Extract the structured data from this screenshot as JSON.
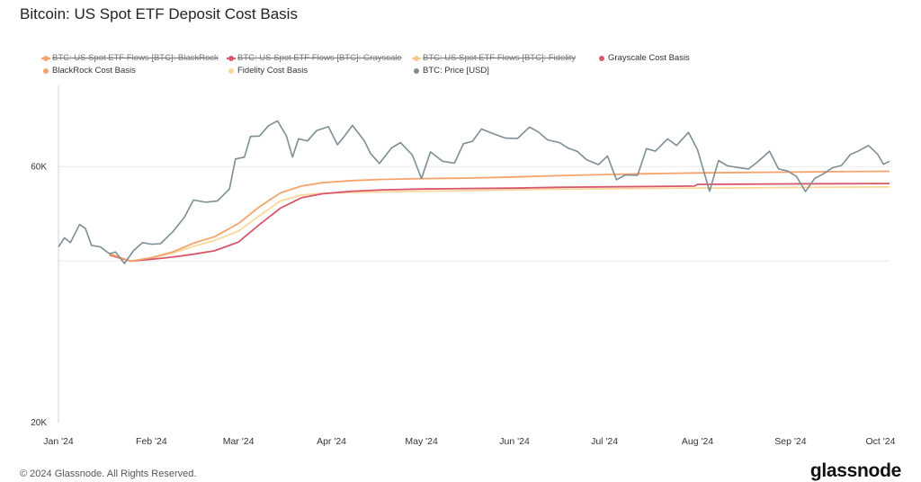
{
  "title": "Bitcoin: US Spot ETF Deposit Cost Basis",
  "footer": "© 2024 Glassnode. All Rights Reserved.",
  "logo": "glassnode",
  "chart_data": {
    "type": "line",
    "title": "Bitcoin: US Spot ETF Deposit Cost Basis",
    "xlabel": "",
    "ylabel": "",
    "y_scale": "log",
    "ylim": [
      20000,
      85000
    ],
    "y_ticks": [
      {
        "value": 20000,
        "label": "20K"
      },
      {
        "value": 60000,
        "label": "60K"
      }
    ],
    "x_ticks": [
      {
        "date": "2024-01-01",
        "label": "Jan '24"
      },
      {
        "date": "2024-02-01",
        "label": "Feb '24"
      },
      {
        "date": "2024-03-01",
        "label": "Mar '24"
      },
      {
        "date": "2024-04-01",
        "label": "Apr '24"
      },
      {
        "date": "2024-05-01",
        "label": "May '24"
      },
      {
        "date": "2024-06-01",
        "label": "Jun '24"
      },
      {
        "date": "2024-07-01",
        "label": "Jul '24"
      },
      {
        "date": "2024-08-01",
        "label": "Aug '24"
      },
      {
        "date": "2024-09-01",
        "label": "Sep '24"
      },
      {
        "date": "2024-10-01",
        "label": "Oct '24"
      }
    ],
    "xlim": [
      "2024-01-01",
      "2024-10-04"
    ],
    "grid": "horizontal",
    "legend_position": "top-left",
    "legend": [
      {
        "name": "BTC: US Spot ETF Flows [BTC]: BlackRock",
        "color": "#f4a46a",
        "marker": "line",
        "hidden": true
      },
      {
        "name": "BTC: US Spot ETF Flows [BTC]: Grayscale",
        "color": "#d9566b",
        "marker": "line",
        "hidden": true
      },
      {
        "name": "BTC: US Spot ETF Flows [BTC]: Fidelity",
        "color": "#f7c98a",
        "marker": "line",
        "hidden": true
      },
      {
        "name": "Grayscale Cost Basis",
        "color": "#d9566b",
        "marker": "dot",
        "hidden": false
      },
      {
        "name": "BlackRock Cost Basis",
        "color": "#f4a46a",
        "marker": "dot",
        "hidden": false
      },
      {
        "name": "Fidelity Cost Basis",
        "color": "#fbd79a",
        "marker": "dot",
        "hidden": false
      },
      {
        "name": "BTC: Price [USD]",
        "color": "#7d8e94",
        "marker": "dot",
        "hidden": false
      }
    ],
    "series": [
      {
        "name": "BTC: Price [USD]",
        "color": "#7d8e94",
        "x": [
          "2024-01-01",
          "2024-01-03",
          "2024-01-05",
          "2024-01-08",
          "2024-01-10",
          "2024-01-12",
          "2024-01-15",
          "2024-01-18",
          "2024-01-20",
          "2024-01-23",
          "2024-01-26",
          "2024-01-29",
          "2024-02-01",
          "2024-02-04",
          "2024-02-08",
          "2024-02-12",
          "2024-02-15",
          "2024-02-19",
          "2024-02-23",
          "2024-02-27",
          "2024-02-29",
          "2024-03-03",
          "2024-03-05",
          "2024-03-08",
          "2024-03-11",
          "2024-03-14",
          "2024-03-17",
          "2024-03-19",
          "2024-03-21",
          "2024-03-24",
          "2024-03-27",
          "2024-03-31",
          "2024-04-03",
          "2024-04-05",
          "2024-04-08",
          "2024-04-12",
          "2024-04-14",
          "2024-04-17",
          "2024-04-21",
          "2024-04-24",
          "2024-04-28",
          "2024-05-01",
          "2024-05-04",
          "2024-05-08",
          "2024-05-12",
          "2024-05-15",
          "2024-05-18",
          "2024-05-21",
          "2024-05-25",
          "2024-05-29",
          "2024-06-02",
          "2024-06-06",
          "2024-06-09",
          "2024-06-12",
          "2024-06-16",
          "2024-06-19",
          "2024-06-22",
          "2024-06-25",
          "2024-06-29",
          "2024-07-02",
          "2024-07-05",
          "2024-07-08",
          "2024-07-12",
          "2024-07-15",
          "2024-07-18",
          "2024-07-22",
          "2024-07-25",
          "2024-07-29",
          "2024-08-01",
          "2024-08-05",
          "2024-08-08",
          "2024-08-11",
          "2024-08-14",
          "2024-08-18",
          "2024-08-21",
          "2024-08-25",
          "2024-08-28",
          "2024-08-31",
          "2024-09-03",
          "2024-09-06",
          "2024-09-09",
          "2024-09-12",
          "2024-09-15",
          "2024-09-18",
          "2024-09-21",
          "2024-09-24",
          "2024-09-27",
          "2024-09-30",
          "2024-10-02",
          "2024-10-04"
        ],
        "y": [
          42500,
          44200,
          43300,
          46800,
          46000,
          42800,
          42500,
          41300,
          41600,
          39600,
          41800,
          43300,
          43000,
          43100,
          45300,
          48300,
          52000,
          51500,
          51800,
          54500,
          62000,
          62500,
          68300,
          68400,
          71500,
          73000,
          68400,
          62500,
          67600,
          67000,
          70000,
          71200,
          65900,
          68000,
          71600,
          67000,
          63500,
          60800,
          65000,
          66500,
          63000,
          57000,
          63900,
          61400,
          60900,
          66200,
          66900,
          70500,
          69100,
          67800,
          67700,
          71100,
          69600,
          67300,
          66500,
          64900,
          64000,
          61800,
          60500,
          62800,
          56700,
          57900,
          57800,
          64800,
          64100,
          67600,
          65700,
          69500,
          64500,
          54000,
          61600,
          60200,
          59800,
          59400,
          61200,
          64100,
          59400,
          58900,
          57500,
          53900,
          57000,
          58200,
          59700,
          60300,
          63200,
          64300,
          65700,
          63300,
          60600,
          61400
        ]
      },
      {
        "name": "BlackRock Cost Basis",
        "color": "#f4a46a",
        "x": [
          "2024-01-18",
          "2024-01-25",
          "2024-02-01",
          "2024-02-08",
          "2024-02-15",
          "2024-02-22",
          "2024-03-01",
          "2024-03-08",
          "2024-03-15",
          "2024-03-22",
          "2024-03-29",
          "2024-04-08",
          "2024-04-18",
          "2024-05-01",
          "2024-05-15",
          "2024-06-01",
          "2024-06-15",
          "2024-07-01",
          "2024-07-15",
          "2024-08-01",
          "2024-08-15",
          "2024-09-01",
          "2024-09-15",
          "2024-10-04"
        ],
        "y": [
          41300,
          40000,
          40600,
          41600,
          43200,
          44400,
          47000,
          50500,
          53600,
          55200,
          56000,
          56500,
          56800,
          57000,
          57100,
          57400,
          57700,
          58000,
          58200,
          58400,
          58500,
          58600,
          58700,
          58800
        ]
      },
      {
        "name": "Grayscale Cost Basis",
        "color": "#d9566b",
        "x": [
          "2024-01-18",
          "2024-01-25",
          "2024-02-01",
          "2024-02-08",
          "2024-02-15",
          "2024-02-22",
          "2024-03-01",
          "2024-03-08",
          "2024-03-15",
          "2024-03-22",
          "2024-03-29",
          "2024-04-08",
          "2024-04-18",
          "2024-05-01",
          "2024-05-15",
          "2024-06-01",
          "2024-06-15",
          "2024-07-01",
          "2024-07-15",
          "2024-07-31",
          "2024-08-01",
          "2024-08-15",
          "2024-09-01",
          "2024-09-15",
          "2024-10-04"
        ],
        "y": [
          41100,
          40000,
          40300,
          40700,
          41200,
          41800,
          43400,
          46800,
          50200,
          52500,
          53400,
          54000,
          54300,
          54500,
          54600,
          54700,
          54900,
          55000,
          55100,
          55200,
          55600,
          55650,
          55700,
          55750,
          55800
        ]
      },
      {
        "name": "Fidelity Cost Basis",
        "color": "#fbd79a",
        "x": [
          "2024-01-18",
          "2024-01-25",
          "2024-02-01",
          "2024-02-08",
          "2024-02-15",
          "2024-02-22",
          "2024-03-01",
          "2024-03-08",
          "2024-03-15",
          "2024-03-22",
          "2024-03-29",
          "2024-04-08",
          "2024-04-18",
          "2024-05-01",
          "2024-05-15",
          "2024-06-01",
          "2024-06-15",
          "2024-07-01",
          "2024-07-15",
          "2024-08-01",
          "2024-08-15",
          "2024-09-01",
          "2024-09-15",
          "2024-10-04"
        ],
        "y": [
          41000,
          40000,
          40500,
          41400,
          42600,
          43700,
          45500,
          48600,
          51800,
          53100,
          53500,
          53700,
          53850,
          54000,
          54100,
          54300,
          54450,
          54550,
          54650,
          54700,
          54750,
          54850,
          54950,
          55000
        ]
      }
    ]
  }
}
